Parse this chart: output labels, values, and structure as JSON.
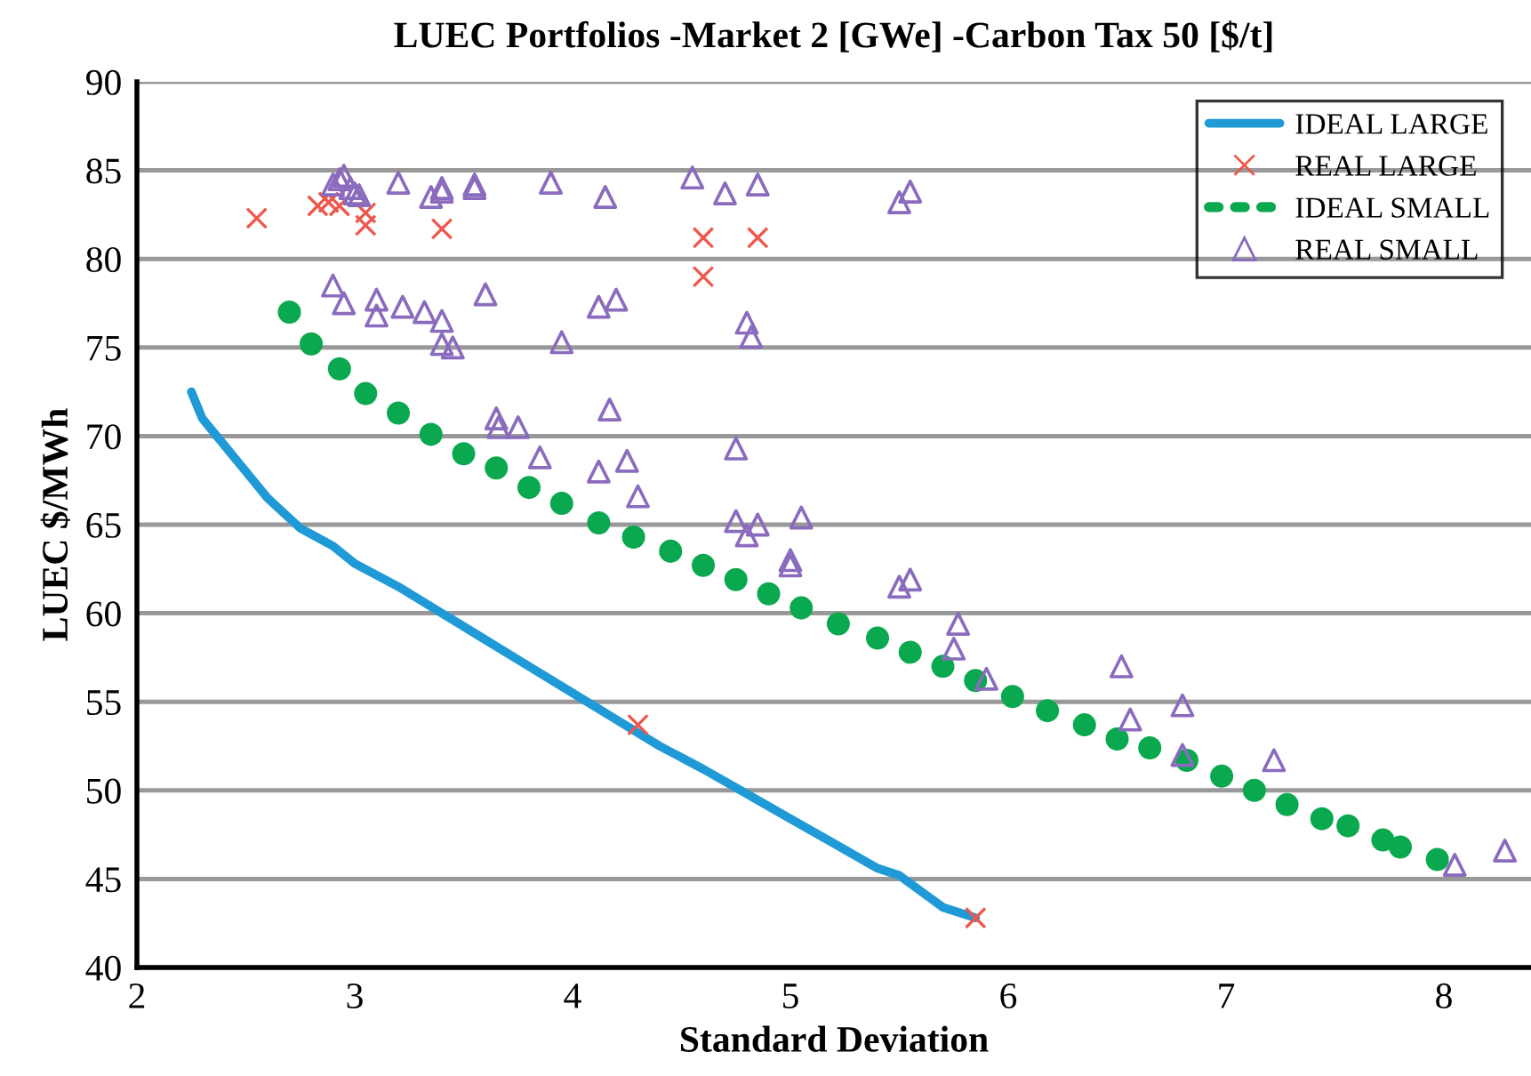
{
  "chart_data": {
    "type": "scatter",
    "title": "LUEC Portfolios -Market 2 [GWe] -Carbon Tax 50 [$/t]",
    "xlabel": "Standard Deviation",
    "ylabel": "LUEC $/MWh",
    "xlim": [
      2,
      8.4
    ],
    "ylim": [
      40,
      90
    ],
    "xticks": [
      2,
      3,
      4,
      5,
      6,
      7,
      8
    ],
    "yticks": [
      40,
      45,
      50,
      55,
      60,
      65,
      70,
      75,
      80,
      85,
      90
    ],
    "grid": "y",
    "legend": "top right",
    "series": [
      {
        "name": "IDEAL LARGE",
        "type": "line",
        "color": "#1f9ad6",
        "marker": "none",
        "line_style": "solid",
        "x": [
          2.25,
          2.3,
          2.4,
          2.5,
          2.6,
          2.75,
          2.9,
          3.0,
          3.2,
          3.4,
          3.6,
          3.8,
          4.0,
          4.2,
          4.4,
          4.6,
          4.8,
          5.0,
          5.2,
          5.4,
          5.5,
          5.6,
          5.7,
          5.85
        ],
        "values": [
          72.5,
          71,
          69.5,
          68,
          66.5,
          64.8,
          63.8,
          62.8,
          61.5,
          60,
          58.5,
          57,
          55.5,
          54,
          52.5,
          51.2,
          49.8,
          48.4,
          47,
          45.6,
          45.2,
          44.3,
          43.4,
          42.8
        ]
      },
      {
        "name": "REAL LARGE",
        "type": "scatter",
        "color": "#f0564a",
        "marker": "cross",
        "x": [
          2.55,
          2.83,
          2.88,
          2.93,
          3.05,
          3.05,
          3.4,
          4.3,
          4.6,
          4.6,
          4.85,
          5.85
        ],
        "values": [
          82.3,
          83,
          83.2,
          83,
          82.6,
          81.9,
          81.7,
          53.7,
          81.2,
          79,
          81.2,
          42.8
        ]
      },
      {
        "name": "IDEAL SMALL",
        "type": "scatter",
        "color": "#0aa84f",
        "marker": "circle",
        "x": [
          2.7,
          2.8,
          2.93,
          3.05,
          3.2,
          3.35,
          3.5,
          3.65,
          3.8,
          3.95,
          4.12,
          4.28,
          4.45,
          4.6,
          4.75,
          4.9,
          5.05,
          5.22,
          5.4,
          5.55,
          5.7,
          5.85,
          6.02,
          6.18,
          6.35,
          6.5,
          6.65,
          6.82,
          6.98,
          7.13,
          7.28,
          7.44,
          7.56,
          7.72,
          7.8,
          7.97
        ],
        "values": [
          77,
          75.2,
          73.8,
          72.4,
          71.3,
          70.1,
          69,
          68.2,
          67.1,
          66.2,
          65.1,
          64.3,
          63.5,
          62.7,
          61.9,
          61.1,
          60.3,
          59.4,
          58.6,
          57.8,
          57,
          56.2,
          55.3,
          54.5,
          53.7,
          52.9,
          52.4,
          51.7,
          50.8,
          50,
          49.2,
          48.4,
          48,
          47.2,
          46.8,
          46.1
        ]
      },
      {
        "name": "REAL SMALL",
        "type": "scatter",
        "color": "#8a6bbd",
        "marker": "triangle",
        "x": [
          2.9,
          2.93,
          2.95,
          2.98,
          3.0,
          3.02,
          3.2,
          3.35,
          3.4,
          3.4,
          3.55,
          3.55,
          3.9,
          4.15,
          4.55,
          4.7,
          4.85,
          5.5,
          5.55,
          2.9,
          2.95,
          3.1,
          3.1,
          3.22,
          3.32,
          3.4,
          3.4,
          3.45,
          3.6,
          3.95,
          4.12,
          4.2,
          4.8,
          4.82,
          3.65,
          3.66,
          3.75,
          3.85,
          4.12,
          4.17,
          4.25,
          4.3,
          4.75,
          4.75,
          4.8,
          4.85,
          5.0,
          5.0,
          5.05,
          5.5,
          5.55,
          5.75,
          5.77,
          5.9,
          6.52,
          6.56,
          6.8,
          6.8,
          7.22,
          8.05,
          8.28
        ],
        "values": [
          84.2,
          84.5,
          84.7,
          84,
          83.7,
          83.6,
          84.3,
          83.5,
          84,
          83.8,
          84.2,
          84,
          84.3,
          83.5,
          84.6,
          83.7,
          84.2,
          83.2,
          83.8,
          78.5,
          77.5,
          77.7,
          76.8,
          77.3,
          77,
          76.5,
          75.2,
          75,
          78,
          75.3,
          77.3,
          77.7,
          76.4,
          75.6,
          71,
          70.5,
          70.5,
          68.8,
          68,
          71.5,
          68.6,
          66.6,
          69.3,
          65.2,
          64.4,
          65,
          63,
          62.7,
          65.4,
          61.5,
          61.9,
          58,
          59.4,
          56.3,
          57,
          54,
          54.8,
          52,
          51.7,
          45.8,
          46.6
        ]
      }
    ]
  }
}
